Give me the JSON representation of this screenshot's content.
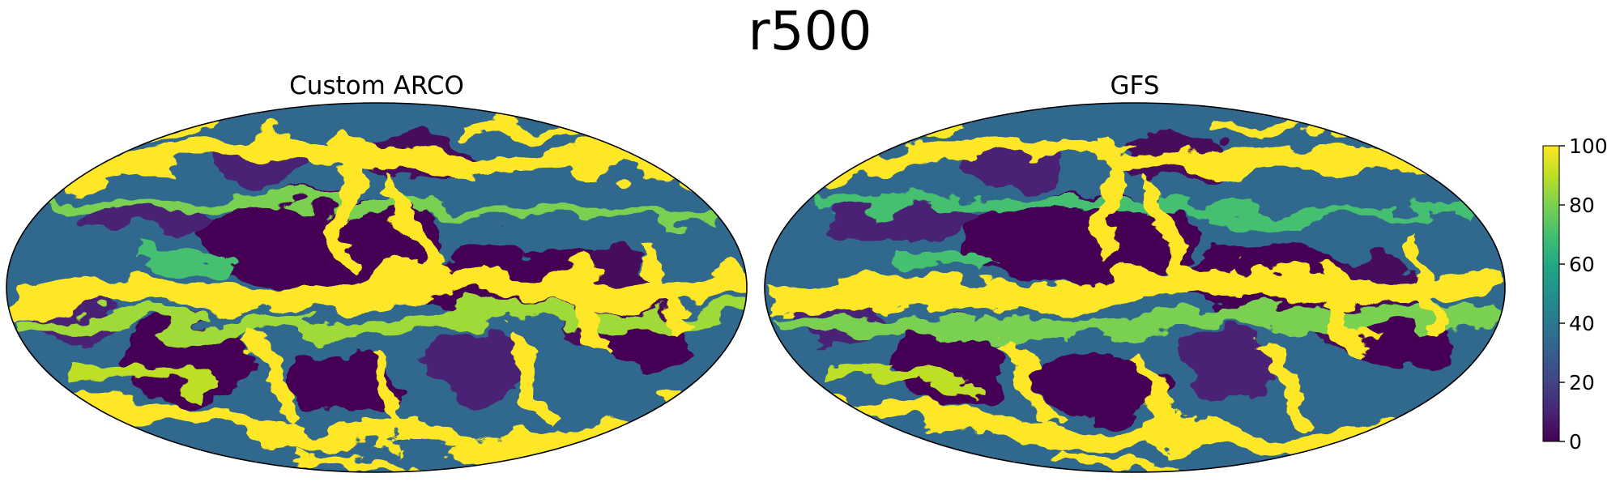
{
  "chart_data": {
    "type": "heatmap",
    "title": "r500",
    "projection": "mollweide",
    "colormap": "viridis",
    "panels": [
      {
        "title": "Custom ARCO"
      },
      {
        "title": "GFS"
      }
    ],
    "colorbar": {
      "range": [
        0,
        100
      ],
      "ticks": [
        0,
        20,
        40,
        60,
        80,
        100
      ],
      "tick_labels": [
        "0",
        "20",
        "40",
        "60",
        "80",
        "100"
      ]
    }
  }
}
